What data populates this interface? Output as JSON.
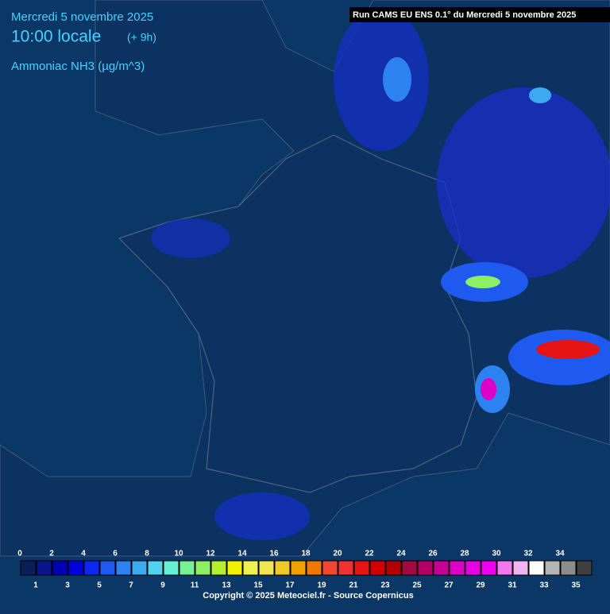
{
  "header": {
    "date": "Mercredi 5 novembre 2025",
    "time": "10:00 locale",
    "offset": "(+ 9h)",
    "variable": "Ammoniac NH3 (µg/m^3)"
  },
  "run": "Run CAMS EU ENS 0.1° du Mercredi 5 novembre 2025",
  "legend": {
    "items": [
      {
        "label": "0",
        "color": "#0a1e5a"
      },
      {
        "label": "1",
        "color": "#0a148c"
      },
      {
        "label": "2",
        "color": "#0000b4"
      },
      {
        "label": "3",
        "color": "#0000dc"
      },
      {
        "label": "4",
        "color": "#0a28f0"
      },
      {
        "label": "5",
        "color": "#1e5af0"
      },
      {
        "label": "6",
        "color": "#2c82f0"
      },
      {
        "label": "7",
        "color": "#3caaf0"
      },
      {
        "label": "8",
        "color": "#50d2f0"
      },
      {
        "label": "9",
        "color": "#64f0d2"
      },
      {
        "label": "10",
        "color": "#78f096"
      },
      {
        "label": "11",
        "color": "#8cf064"
      },
      {
        "label": "12",
        "color": "#b4f032"
      },
      {
        "label": "13",
        "color": "#f0f000"
      },
      {
        "label": "14",
        "color": "#f0f050"
      },
      {
        "label": "15",
        "color": "#f0e650"
      },
      {
        "label": "16",
        "color": "#f0c828"
      },
      {
        "label": "17",
        "color": "#f0a000"
      },
      {
        "label": "18",
        "color": "#f07800"
      },
      {
        "label": "19",
        "color": "#f04632"
      },
      {
        "label": "20",
        "color": "#f03232"
      },
      {
        "label": "21",
        "color": "#e61414"
      },
      {
        "label": "22",
        "color": "#d20000"
      },
      {
        "label": "23",
        "color": "#b40000"
      },
      {
        "label": "24",
        "color": "#a00a3c"
      },
      {
        "label": "25",
        "color": "#b40064"
      },
      {
        "label": "26",
        "color": "#c80096"
      },
      {
        "label": "27",
        "color": "#dc00c8"
      },
      {
        "label": "28",
        "color": "#e600e6"
      },
      {
        "label": "29",
        "color": "#f000f0"
      },
      {
        "label": "30",
        "color": "#f078f0"
      },
      {
        "label": "31",
        "color": "#f0b4f0"
      },
      {
        "label": "32",
        "color": "#ffffff"
      },
      {
        "label": "33",
        "color": "#b4b4b4"
      },
      {
        "label": "34",
        "color": "#8c8c8c"
      },
      {
        "label": "35",
        "color": "#404040"
      }
    ]
  },
  "footer": "Copyright © 2025 Meteociel.fr - Source Copernicus"
}
